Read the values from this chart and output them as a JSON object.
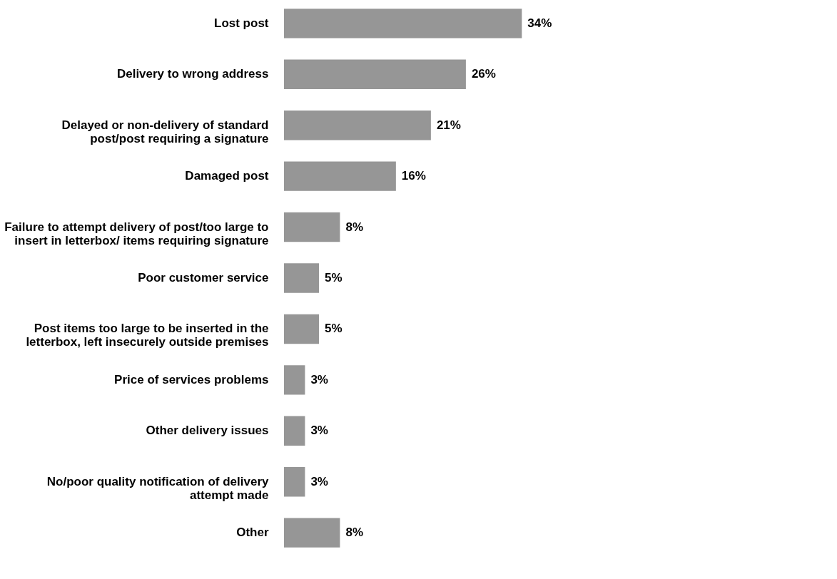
{
  "chart_data": {
    "type": "bar",
    "orientation": "horizontal",
    "categories": [
      "Lost post",
      "Delivery to wrong address",
      "Delayed or non-delivery of standard\npost/post requiring a signature",
      "Damaged post",
      "Failure to attempt delivery of post/too large to\ninsert  in letterbox/ items requiring signature",
      "Poor customer service",
      "Post items too large to be inserted in the\nletterbox,  left insecurely outside premises",
      "Price of services problems",
      "Other delivery issues",
      "No/poor quality notification of delivery\nattempt made",
      "Other"
    ],
    "values": [
      34,
      26,
      21,
      16,
      8,
      5,
      5,
      3,
      3,
      3,
      8
    ],
    "value_labels": [
      "34%",
      "26%",
      "21%",
      "16%",
      "8%",
      "5%",
      "5%",
      "3%",
      "3%",
      "3%",
      "8%"
    ],
    "color": "#969696"
  }
}
